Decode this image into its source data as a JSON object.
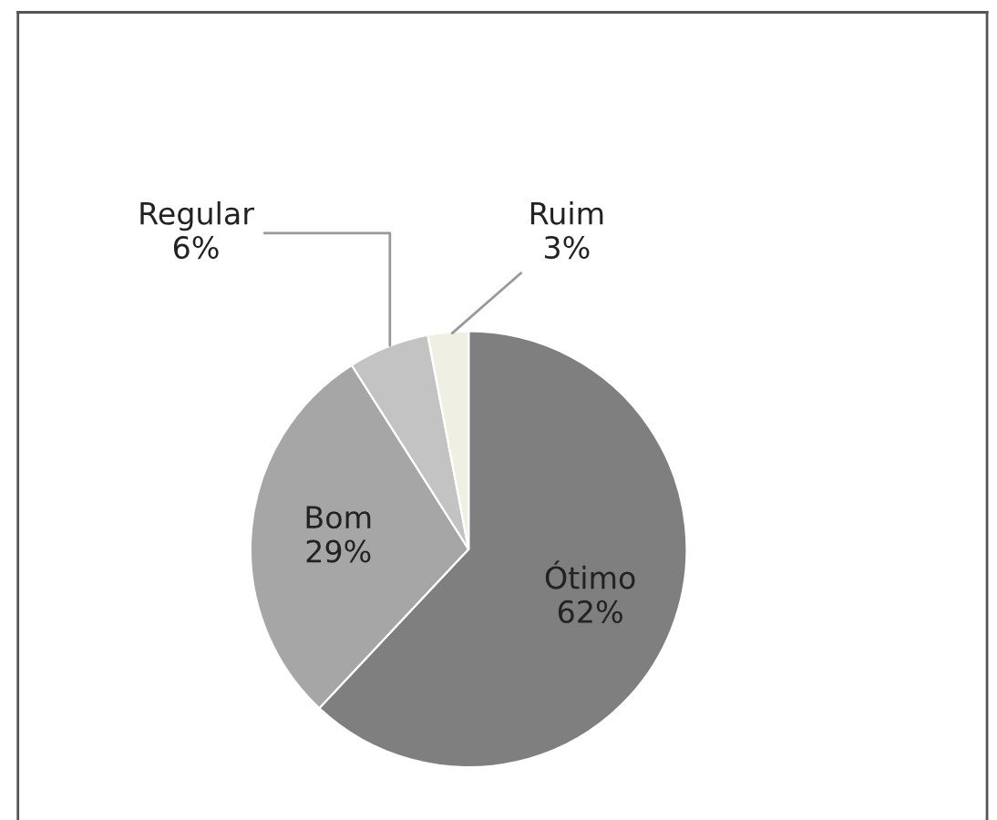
{
  "chart_data": {
    "type": "pie",
    "categories": [
      "Ótimo",
      "Bom",
      "Regular",
      "Ruim"
    ],
    "values": [
      62,
      29,
      6,
      3
    ],
    "colors": [
      "#7f7f7f",
      "#a6a6a6",
      "#c3c3c3",
      "#efefe4"
    ],
    "value_labels": [
      "62%",
      "29%",
      "6%",
      "3%"
    ],
    "legend": false
  }
}
